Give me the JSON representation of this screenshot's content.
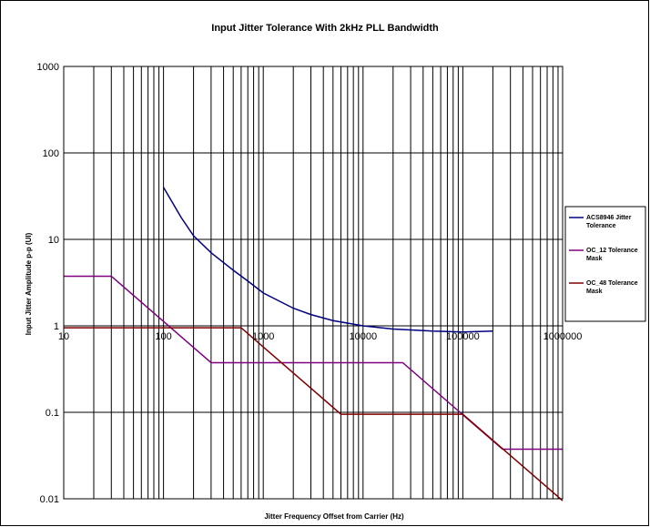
{
  "chart_data": {
    "type": "line",
    "title": "Input Jitter Tolerance With 2kHz PLL Bandwidth",
    "xlabel": "Jitter Frequency Offset from Carrier (Hz)",
    "ylabel": "Input Jitter Amplitude p-p (UI)",
    "x_scale": "log",
    "y_scale": "log",
    "xlim": [
      10,
      1000000
    ],
    "ylim": [
      0.01,
      1000
    ],
    "x_ticks": [
      "10",
      "100",
      "1000",
      "10000",
      "100000",
      "1000000"
    ],
    "y_ticks": [
      "0.01",
      "0.1",
      "1",
      "10",
      "100",
      "1000"
    ],
    "grid": true,
    "legend_position": "right",
    "series": [
      {
        "name": "ACS8946 Jitter Tolerance",
        "color": "#000080",
        "x": [
          100,
          150,
          200,
          300,
          500,
          700,
          1000,
          2000,
          3000,
          5000,
          10000,
          20000,
          50000,
          100000,
          200000
        ],
        "y": [
          40,
          18,
          11,
          7,
          4.4,
          3.3,
          2.4,
          1.6,
          1.35,
          1.15,
          1.0,
          0.92,
          0.87,
          0.85,
          0.87
        ]
      },
      {
        "name": "OC_12 Tolerance Mask",
        "color": "#800080",
        "x": [
          10,
          30,
          300,
          25000,
          250000,
          1000000
        ],
        "y": [
          3.75,
          3.75,
          0.375,
          0.375,
          0.0375,
          0.0375
        ]
      },
      {
        "name": "OC_48 Tolerance Mask",
        "color": "#800000",
        "x": [
          10,
          600,
          6000,
          100000,
          1000000
        ],
        "y": [
          0.95,
          0.95,
          0.095,
          0.095,
          0.0095
        ]
      }
    ]
  }
}
